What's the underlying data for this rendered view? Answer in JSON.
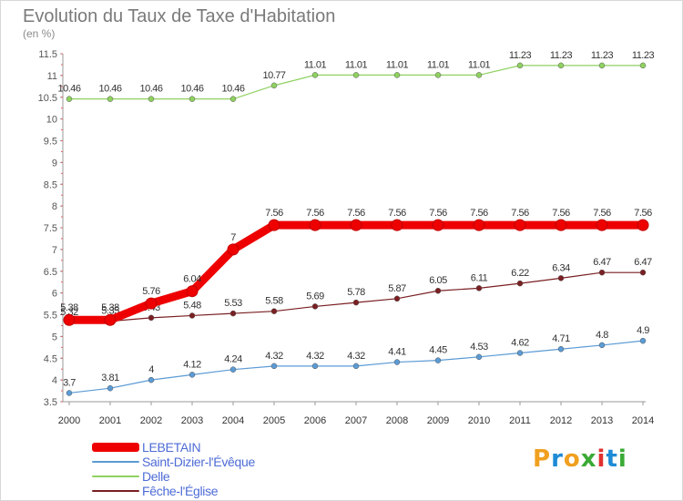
{
  "header": {
    "title": "Evolution du Taux de Taxe d'Habitation",
    "subtitle": "(en %)"
  },
  "chart_data": {
    "type": "line",
    "x": [
      "2000",
      "2001",
      "2002",
      "2003",
      "2004",
      "2005",
      "2006",
      "2007",
      "2008",
      "2009",
      "2010",
      "2011",
      "2012",
      "2013",
      "2014"
    ],
    "ylim": [
      3.5,
      11.5
    ],
    "yticks": [
      "3.5",
      "4",
      "4.5",
      "5",
      "5.5",
      "6",
      "6.5",
      "7",
      "7.5",
      "8",
      "8.5",
      "9",
      "9.5",
      "10",
      "10.5",
      "11",
      "11.5"
    ],
    "grid": false,
    "legend_position": "bottom-left",
    "series": [
      {
        "name": "LEBETAIN",
        "color": "#ee0000",
        "values": [
          5.38,
          5.38,
          5.76,
          6.04,
          7,
          7.56,
          7.56,
          7.56,
          7.56,
          7.56,
          7.56,
          7.56,
          7.56,
          7.56,
          7.56
        ],
        "labels": [
          "5.38",
          "5.38",
          "5.76",
          "6.04",
          "7",
          "7.56",
          "7.56",
          "7.56",
          "7.56",
          "7.56",
          "7.56",
          "7.56",
          "7.56",
          "7.56",
          "7.56"
        ]
      },
      {
        "name": "Saint-Dizier-l'Évêque",
        "color": "#5b9bd5",
        "values": [
          3.7,
          3.81,
          4,
          4.12,
          4.24,
          4.32,
          4.32,
          4.32,
          4.41,
          4.45,
          4.53,
          4.62,
          4.71,
          4.8,
          4.9
        ],
        "labels": [
          "3.7",
          "3.81",
          "4",
          "4.12",
          "4.24",
          "4.32",
          "4.32",
          "4.32",
          "4.41",
          "4.45",
          "4.53",
          "4.62",
          "4.71",
          "4.8",
          "4.9"
        ]
      },
      {
        "name": "Delle",
        "color": "#8fd160",
        "values": [
          10.46,
          10.46,
          10.46,
          10.46,
          10.46,
          10.77,
          11.01,
          11.01,
          11.01,
          11.01,
          11.01,
          11.23,
          11.23,
          11.23,
          11.23
        ],
        "labels": [
          "10.46",
          "10.46",
          "10.46",
          "10.46",
          "10.46",
          "10.77",
          "11.01",
          "11.01",
          "11.01",
          "11.01",
          "11.01",
          "11.23",
          "11.23",
          "11.23",
          "11.23"
        ]
      },
      {
        "name": "Fêche-l'Église",
        "color": "#7a1f22",
        "values": [
          5.32,
          5.35,
          5.43,
          5.48,
          5.53,
          5.58,
          5.69,
          5.78,
          5.87,
          6.05,
          6.11,
          6.22,
          6.34,
          6.47,
          6.47
        ],
        "labels": [
          "5.32",
          "5.35",
          "5.43",
          "5.48",
          "5.53",
          "5.58",
          "5.69",
          "5.78",
          "5.87",
          "6.05",
          "6.11",
          "6.22",
          "6.34",
          "6.47",
          "6.47"
        ]
      }
    ]
  },
  "logo": {
    "text": "Proxiti",
    "colors": [
      "#f0a020",
      "#1e8bd6",
      "#f0a020",
      "#3aaa35",
      "#e03030",
      "#1e8bd6",
      "#3aaa35"
    ]
  }
}
